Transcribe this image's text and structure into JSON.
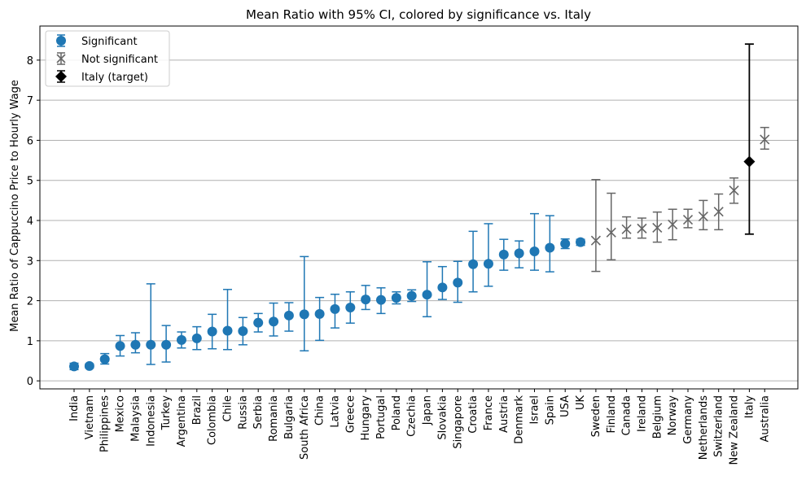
{
  "chart_data": {
    "type": "scatter",
    "title": "Mean Ratio with 95% CI, colored by significance vs. Italy",
    "xlabel": "",
    "ylabel": "Mean Ratio of Cappuccino Price to Hourly Wage",
    "ylim": [
      -0.2,
      8.85
    ],
    "yticks": [
      0,
      1,
      2,
      3,
      4,
      5,
      6,
      7,
      8
    ],
    "grid": "horizontal",
    "legend_position": "top-left",
    "colors": {
      "significant": "#1f77b4",
      "not_significant": "#666666",
      "target": "#000000",
      "grid": "#b0b0b0"
    },
    "legend": [
      {
        "label": "Significant",
        "marker": "circle",
        "color": "#1f77b4"
      },
      {
        "label": "Not significant",
        "marker": "x",
        "color": "#666666"
      },
      {
        "label": "Italy (target)",
        "marker": "diamond",
        "color": "#000000"
      }
    ],
    "points": [
      {
        "country": "India",
        "mean": 0.36,
        "lo": 0.28,
        "hi": 0.44,
        "group": "significant"
      },
      {
        "country": "Vietnam",
        "mean": 0.37,
        "lo": 0.32,
        "hi": 0.42,
        "group": "significant"
      },
      {
        "country": "Philippines",
        "mean": 0.54,
        "lo": 0.42,
        "hi": 0.68,
        "group": "significant"
      },
      {
        "country": "Mexico",
        "mean": 0.87,
        "lo": 0.62,
        "hi": 1.13,
        "group": "significant"
      },
      {
        "country": "Malaysia",
        "mean": 0.9,
        "lo": 0.7,
        "hi": 1.2,
        "group": "significant"
      },
      {
        "country": "Indonesia",
        "mean": 0.9,
        "lo": 0.41,
        "hi": 2.42,
        "group": "significant"
      },
      {
        "country": "Turkey",
        "mean": 0.9,
        "lo": 0.47,
        "hi": 1.38,
        "group": "significant"
      },
      {
        "country": "Argentina",
        "mean": 1.02,
        "lo": 0.82,
        "hi": 1.22,
        "group": "significant"
      },
      {
        "country": "Brazil",
        "mean": 1.06,
        "lo": 0.78,
        "hi": 1.35,
        "group": "significant"
      },
      {
        "country": "Colombia",
        "mean": 1.23,
        "lo": 0.8,
        "hi": 1.66,
        "group": "significant"
      },
      {
        "country": "Chile",
        "mean": 1.25,
        "lo": 0.78,
        "hi": 2.28,
        "group": "significant"
      },
      {
        "country": "Russia",
        "mean": 1.24,
        "lo": 0.9,
        "hi": 1.58,
        "group": "significant"
      },
      {
        "country": "Serbia",
        "mean": 1.45,
        "lo": 1.22,
        "hi": 1.68,
        "group": "significant"
      },
      {
        "country": "Romania",
        "mean": 1.48,
        "lo": 1.12,
        "hi": 1.94,
        "group": "significant"
      },
      {
        "country": "Bulgaria",
        "mean": 1.63,
        "lo": 1.24,
        "hi": 1.95,
        "group": "significant"
      },
      {
        "country": "South Africa",
        "mean": 1.66,
        "lo": 0.75,
        "hi": 3.1,
        "group": "significant"
      },
      {
        "country": "China",
        "mean": 1.67,
        "lo": 1.01,
        "hi": 2.08,
        "group": "significant"
      },
      {
        "country": "Latvia",
        "mean": 1.79,
        "lo": 1.32,
        "hi": 2.16,
        "group": "significant"
      },
      {
        "country": "Greece",
        "mean": 1.83,
        "lo": 1.44,
        "hi": 2.22,
        "group": "significant"
      },
      {
        "country": "Hungary",
        "mean": 2.03,
        "lo": 1.78,
        "hi": 2.38,
        "group": "significant"
      },
      {
        "country": "Portugal",
        "mean": 2.02,
        "lo": 1.68,
        "hi": 2.32,
        "group": "significant"
      },
      {
        "country": "Poland",
        "mean": 2.07,
        "lo": 1.92,
        "hi": 2.22,
        "group": "significant"
      },
      {
        "country": "Czechia",
        "mean": 2.12,
        "lo": 1.98,
        "hi": 2.27,
        "group": "significant"
      },
      {
        "country": "Japan",
        "mean": 2.15,
        "lo": 1.6,
        "hi": 2.97,
        "group": "significant"
      },
      {
        "country": "Slovakia",
        "mean": 2.33,
        "lo": 2.03,
        "hi": 2.85,
        "group": "significant"
      },
      {
        "country": "Singapore",
        "mean": 2.45,
        "lo": 1.96,
        "hi": 2.98,
        "group": "significant"
      },
      {
        "country": "Croatia",
        "mean": 2.91,
        "lo": 2.22,
        "hi": 3.73,
        "group": "significant"
      },
      {
        "country": "France",
        "mean": 2.92,
        "lo": 2.36,
        "hi": 3.92,
        "group": "significant"
      },
      {
        "country": "Austria",
        "mean": 3.15,
        "lo": 2.76,
        "hi": 3.53,
        "group": "significant"
      },
      {
        "country": "Denmark",
        "mean": 3.18,
        "lo": 2.82,
        "hi": 3.49,
        "group": "significant"
      },
      {
        "country": "Israel",
        "mean": 3.23,
        "lo": 2.76,
        "hi": 4.17,
        "group": "significant"
      },
      {
        "country": "Spain",
        "mean": 3.32,
        "lo": 2.72,
        "hi": 4.12,
        "group": "significant"
      },
      {
        "country": "USA",
        "mean": 3.42,
        "lo": 3.3,
        "hi": 3.54,
        "group": "significant"
      },
      {
        "country": "UK",
        "mean": 3.46,
        "lo": 3.38,
        "hi": 3.53,
        "group": "significant"
      },
      {
        "country": "Sweden",
        "mean": 3.5,
        "lo": 2.73,
        "hi": 5.02,
        "group": "not_significant"
      },
      {
        "country": "Finland",
        "mean": 3.7,
        "lo": 3.02,
        "hi": 4.68,
        "group": "not_significant"
      },
      {
        "country": "Canada",
        "mean": 3.78,
        "lo": 3.56,
        "hi": 4.09,
        "group": "not_significant"
      },
      {
        "country": "Ireland",
        "mean": 3.8,
        "lo": 3.56,
        "hi": 4.06,
        "group": "not_significant"
      },
      {
        "country": "Belgium",
        "mean": 3.82,
        "lo": 3.46,
        "hi": 4.21,
        "group": "not_significant"
      },
      {
        "country": "Norway",
        "mean": 3.9,
        "lo": 3.52,
        "hi": 4.28,
        "group": "not_significant"
      },
      {
        "country": "Germany",
        "mean": 4.02,
        "lo": 3.82,
        "hi": 4.28,
        "group": "not_significant"
      },
      {
        "country": "Netherlands",
        "mean": 4.1,
        "lo": 3.77,
        "hi": 4.5,
        "group": "not_significant"
      },
      {
        "country": "Switzerland",
        "mean": 4.22,
        "lo": 3.77,
        "hi": 4.66,
        "group": "not_significant"
      },
      {
        "country": "New Zealand",
        "mean": 4.75,
        "lo": 4.43,
        "hi": 5.06,
        "group": "not_significant"
      },
      {
        "country": "Italy",
        "mean": 5.47,
        "lo": 3.66,
        "hi": 8.4,
        "group": "target"
      },
      {
        "country": "Australia",
        "mean": 6.02,
        "lo": 5.78,
        "hi": 6.32,
        "group": "not_significant"
      }
    ]
  }
}
